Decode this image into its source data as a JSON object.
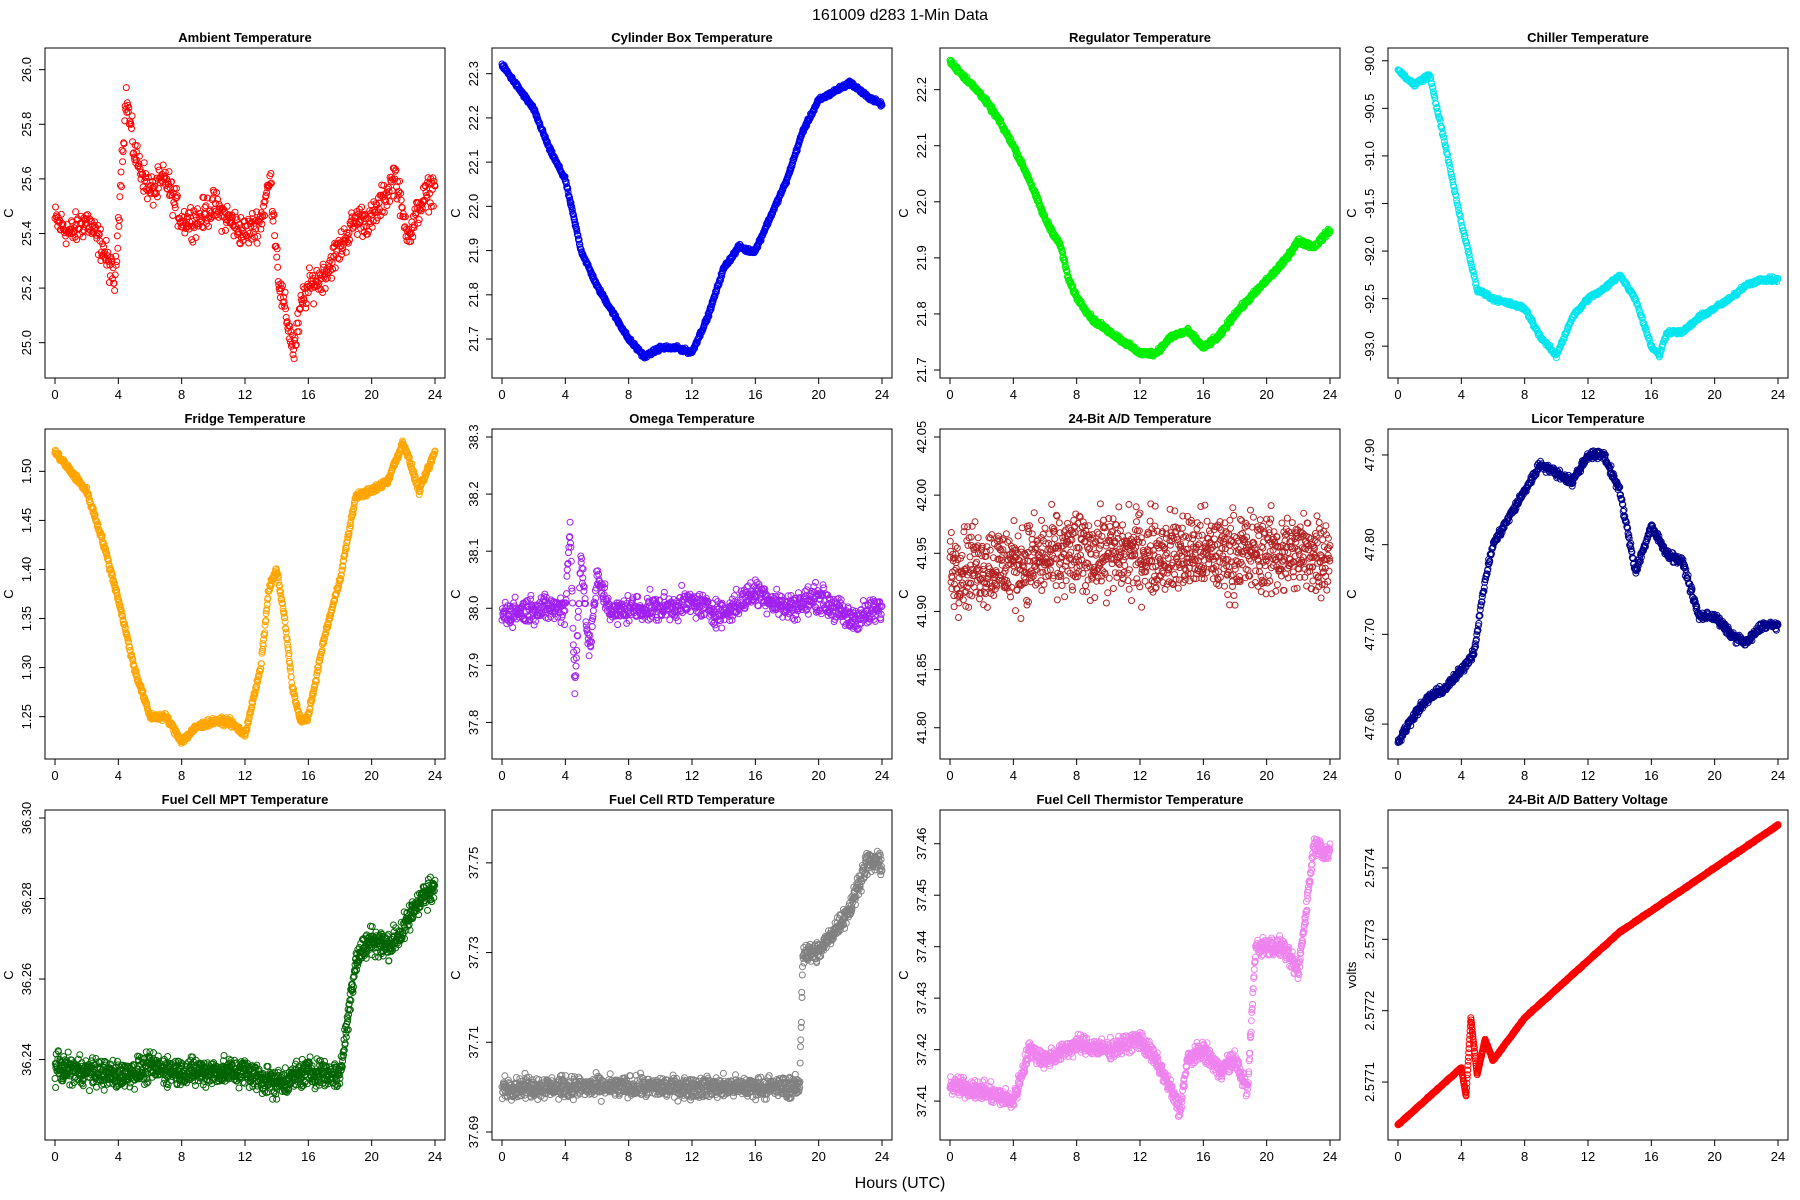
{
  "figure": {
    "title": "161009    d283    1-Min Data",
    "xlabel": "Hours (UTC)"
  },
  "chart_data": [
    {
      "type": "scatter",
      "title": "Ambient Temperature",
      "ylabel": "C",
      "color": "#ff0000",
      "xlim": [
        0,
        24
      ],
      "ylim": [
        24.9,
        26.05
      ],
      "xticks": [
        0,
        4,
        8,
        12,
        16,
        20,
        24
      ],
      "yticks": [
        25.0,
        25.2,
        25.4,
        25.6,
        25.8,
        26.0
      ],
      "ytick_labels": [
        "25.0",
        "25.2",
        "25.4",
        "25.6",
        "25.8",
        "26.0"
      ],
      "x": [
        0,
        1,
        2,
        3,
        3.8,
        4.1,
        4.5,
        5,
        6,
        7,
        8,
        9,
        10,
        11,
        12,
        13,
        13.6,
        14.2,
        14.6,
        15.1,
        15.6,
        16,
        17,
        18,
        19,
        20,
        21,
        21.5,
        22,
        22.5,
        23,
        24
      ],
      "y": [
        25.45,
        25.4,
        25.45,
        25.35,
        25.22,
        25.55,
        25.9,
        25.7,
        25.55,
        25.6,
        25.45,
        25.45,
        25.5,
        25.45,
        25.4,
        25.45,
        25.6,
        25.2,
        25.1,
        24.97,
        25.15,
        25.2,
        25.25,
        25.35,
        25.45,
        25.45,
        25.55,
        25.62,
        25.45,
        25.4,
        25.5,
        25.58
      ],
      "noise": 0.05,
      "density": 30
    },
    {
      "type": "scatter",
      "title": "Cylinder Box Temperature",
      "ylabel": "C",
      "color": "#0000ee",
      "xlim": [
        0,
        24
      ],
      "ylim": [
        21.63,
        22.34
      ],
      "xticks": [
        0,
        4,
        8,
        12,
        16,
        20,
        24
      ],
      "yticks": [
        21.7,
        21.8,
        21.9,
        22.0,
        22.1,
        22.2,
        22.3
      ],
      "ytick_labels": [
        "21.7",
        "21.8",
        "21.9",
        "22.0",
        "22.1",
        "22.2",
        "22.3"
      ],
      "x": [
        0,
        1,
        2,
        3,
        4,
        5,
        6,
        7,
        8,
        9,
        10,
        11,
        12,
        13,
        14,
        15,
        15.5,
        16,
        17,
        18,
        19,
        20,
        21,
        22,
        23,
        24
      ],
      "y": [
        22.32,
        22.27,
        22.22,
        22.13,
        22.06,
        21.9,
        21.82,
        21.76,
        21.7,
        21.66,
        21.68,
        21.68,
        21.67,
        21.75,
        21.86,
        21.91,
        21.9,
        21.9,
        21.98,
        22.06,
        22.17,
        22.24,
        22.26,
        22.28,
        22.25,
        22.23
      ],
      "noise": 0.004,
      "density": 45
    },
    {
      "type": "scatter",
      "title": "Regulator Temperature",
      "ylabel": "C",
      "color": "#00ee00",
      "xlim": [
        0,
        24
      ],
      "ylim": [
        21.7,
        22.26
      ],
      "xticks": [
        0,
        4,
        8,
        12,
        16,
        20,
        24
      ],
      "yticks": [
        21.7,
        21.8,
        21.9,
        22.0,
        22.1,
        22.2
      ],
      "ytick_labels": [
        "21.7",
        "21.8",
        "21.9",
        "22.0",
        "22.1",
        "22.2"
      ],
      "x": [
        0,
        1,
        2,
        3,
        4,
        5,
        6,
        7,
        7.5,
        8,
        9,
        10,
        11,
        12,
        13,
        14,
        15,
        16,
        17,
        18,
        19,
        20,
        21,
        22,
        23,
        24
      ],
      "y": [
        22.25,
        22.22,
        22.19,
        22.15,
        22.1,
        22.04,
        21.97,
        21.92,
        21.86,
        21.83,
        21.79,
        21.77,
        21.75,
        21.73,
        21.73,
        21.76,
        21.77,
        21.74,
        21.76,
        21.8,
        21.83,
        21.86,
        21.89,
        21.93,
        21.92,
        21.95
      ],
      "noise": 0.004,
      "density": 45
    },
    {
      "type": "scatter",
      "title": "Chiller Temperature",
      "ylabel": "C",
      "color": "#00e5ee",
      "xlim": [
        0,
        24
      ],
      "ylim": [
        -93.25,
        -89.95
      ],
      "xticks": [
        0,
        4,
        8,
        12,
        16,
        20,
        24
      ],
      "yticks": [
        -90.0,
        -90.5,
        -91.0,
        -91.5,
        -92.0,
        -92.5,
        -93.0
      ],
      "ytick_labels": [
        "-90.0",
        "-90.5",
        "-91.0",
        "-91.5",
        "-92.0",
        "-92.5",
        "-93.0"
      ],
      "x": [
        0,
        1,
        2,
        3,
        4,
        5,
        6,
        7,
        8,
        9,
        10,
        11,
        12,
        13,
        14,
        15,
        16,
        16.5,
        17,
        18,
        19,
        20,
        21,
        22,
        23,
        24
      ],
      "y": [
        -90.1,
        -90.25,
        -90.15,
        -90.9,
        -91.7,
        -92.4,
        -92.5,
        -92.55,
        -92.6,
        -92.9,
        -93.1,
        -92.7,
        -92.5,
        -92.4,
        -92.25,
        -92.5,
        -93.0,
        -93.1,
        -92.85,
        -92.85,
        -92.7,
        -92.6,
        -92.5,
        -92.35,
        -92.3,
        -92.3
      ],
      "noise": 0.02,
      "density": 30
    },
    {
      "type": "scatter",
      "title": "Fridge Temperature",
      "ylabel": "C",
      "color": "#ffa500",
      "xlim": [
        0,
        24
      ],
      "ylim": [
        1.215,
        1.535
      ],
      "xticks": [
        0,
        4,
        8,
        12,
        16,
        20,
        24
      ],
      "yticks": [
        1.25,
        1.3,
        1.35,
        1.4,
        1.45,
        1.5
      ],
      "ytick_labels": [
        "1.25",
        "1.30",
        "1.35",
        "1.40",
        "1.45",
        "1.50"
      ],
      "x": [
        0,
        1,
        2,
        3,
        4,
        5,
        6,
        7,
        8,
        9,
        10,
        11,
        12,
        13,
        13.5,
        14,
        14.5,
        15,
        15.5,
        16,
        17,
        18,
        19,
        20,
        21,
        22,
        23,
        24
      ],
      "y": [
        1.52,
        1.5,
        1.48,
        1.43,
        1.37,
        1.3,
        1.25,
        1.25,
        1.225,
        1.24,
        1.245,
        1.245,
        1.232,
        1.3,
        1.38,
        1.4,
        1.35,
        1.28,
        1.245,
        1.25,
        1.33,
        1.39,
        1.475,
        1.48,
        1.49,
        1.53,
        1.48,
        1.52
      ],
      "noise": 0.003,
      "density": 45
    },
    {
      "type": "scatter",
      "title": "Omega Temperature",
      "ylabel": "C",
      "color": "#a020f0",
      "xlim": [
        0,
        24
      ],
      "ylim": [
        37.75,
        38.3
      ],
      "xticks": [
        0,
        4,
        8,
        12,
        16,
        20,
        24
      ],
      "yticks": [
        37.8,
        37.9,
        38.0,
        38.1,
        38.2,
        38.3
      ],
      "ytick_labels": [
        "37.8",
        "37.9",
        "38.0",
        "38.1",
        "38.2",
        "38.3"
      ],
      "x": [
        0,
        2,
        4,
        4.3,
        4.6,
        5,
        5.5,
        6,
        7,
        8,
        10,
        12,
        14,
        16,
        18,
        20,
        22,
        24
      ],
      "y": [
        37.99,
        38.0,
        38.0,
        38.15,
        37.85,
        38.1,
        37.92,
        38.05,
        37.99,
        38.0,
        38.0,
        38.01,
        37.99,
        38.03,
        38.0,
        38.02,
        37.98,
        38.0
      ],
      "noise": 0.02,
      "density": 40
    },
    {
      "type": "scatter",
      "title": "24-Bit A/D Temperature",
      "ylabel": "C",
      "color": "#b22222",
      "xlim": [
        0,
        24
      ],
      "ylim": [
        41.78,
        42.05
      ],
      "xticks": [
        0,
        4,
        8,
        12,
        16,
        20,
        24
      ],
      "yticks": [
        41.8,
        41.85,
        41.9,
        41.95,
        42.0,
        42.05
      ],
      "ytick_labels": [
        "41.80",
        "41.85",
        "41.90",
        "41.95",
        "42.00",
        "42.05"
      ],
      "x": [
        0,
        4,
        8,
        12,
        16,
        20,
        24
      ],
      "y": [
        41.94,
        41.94,
        41.95,
        41.95,
        41.95,
        41.95,
        41.95
      ],
      "noise": 0.03,
      "density": 50
    },
    {
      "type": "scatter",
      "title": "Licor Temperature",
      "ylabel": "C",
      "color": "#00008b",
      "xlim": [
        0,
        24
      ],
      "ylim": [
        47.57,
        47.92
      ],
      "xticks": [
        0,
        4,
        8,
        12,
        16,
        20,
        24
      ],
      "yticks": [
        47.6,
        47.7,
        47.8,
        47.9
      ],
      "ytick_labels": [
        "47.60",
        "47.70",
        "47.80",
        "47.90"
      ],
      "x": [
        0,
        1,
        2,
        3,
        4,
        4.8,
        5.5,
        6,
        7,
        8,
        9,
        10,
        11,
        12,
        13,
        14,
        15,
        16,
        17,
        18,
        19,
        20,
        21,
        22,
        23,
        24
      ],
      "y": [
        47.58,
        47.61,
        47.63,
        47.64,
        47.66,
        47.68,
        47.76,
        47.8,
        47.83,
        47.86,
        47.89,
        47.88,
        47.87,
        47.9,
        47.9,
        47.86,
        47.77,
        47.82,
        47.79,
        47.78,
        47.72,
        47.72,
        47.7,
        47.69,
        47.71,
        47.71
      ],
      "noise": 0.004,
      "density": 40
    },
    {
      "type": "scatter",
      "title": "Fuel Cell MPT Temperature",
      "ylabel": "C",
      "color": "#006400",
      "xlim": [
        0,
        24
      ],
      "ylim": [
        36.222,
        36.3
      ],
      "xticks": [
        0,
        4,
        8,
        12,
        16,
        20,
        24
      ],
      "yticks": [
        36.24,
        36.26,
        36.28,
        36.3
      ],
      "ytick_labels": [
        "36.24",
        "36.26",
        "36.28",
        "36.30"
      ],
      "x": [
        0,
        2,
        4,
        6,
        8,
        10,
        12,
        14,
        16,
        18,
        19,
        20,
        21,
        22,
        23,
        24
      ],
      "y": [
        36.238,
        36.237,
        36.236,
        36.238,
        36.237,
        36.237,
        36.237,
        36.234,
        36.237,
        36.236,
        36.265,
        36.27,
        36.268,
        36.272,
        36.28,
        36.282
      ],
      "noise": 0.003,
      "density": 55
    },
    {
      "type": "scatter",
      "title": "Fuel Cell RTD Temperature",
      "ylabel": "C",
      "color": "#808080",
      "xlim": [
        0,
        24
      ],
      "ylim": [
        37.69,
        37.76
      ],
      "xticks": [
        0,
        4,
        8,
        12,
        16,
        20,
        24
      ],
      "yticks": [
        37.69,
        37.71,
        37.73,
        37.75
      ],
      "ytick_labels": [
        "37.69",
        "37.71",
        "37.73",
        "37.75"
      ],
      "x": [
        0,
        4,
        8,
        12,
        16,
        18.8,
        19,
        20,
        22,
        23,
        24
      ],
      "y": [
        37.7,
        37.7,
        37.7,
        37.7,
        37.7,
        37.7,
        37.73,
        37.73,
        37.74,
        37.75,
        37.75
      ],
      "noise": 0.002,
      "density": 55
    },
    {
      "type": "scatter",
      "title": "Fuel Cell Thermistor Temperature",
      "ylabel": "C",
      "color": "#ee82ee",
      "xlim": [
        0,
        24
      ],
      "ylim": [
        37.404,
        37.465
      ],
      "xticks": [
        0,
        4,
        8,
        12,
        16,
        20,
        24
      ],
      "yticks": [
        37.41,
        37.42,
        37.43,
        37.44,
        37.45,
        37.46
      ],
      "ytick_labels": [
        "37.41",
        "37.42",
        "37.43",
        "37.44",
        "37.45",
        "37.46"
      ],
      "x": [
        0,
        2,
        4,
        5,
        6,
        8,
        10,
        12,
        13,
        14,
        14.5,
        15,
        16,
        17,
        18,
        18.8,
        19.3,
        20,
        21,
        22,
        23,
        24
      ],
      "y": [
        37.413,
        37.412,
        37.41,
        37.42,
        37.418,
        37.421,
        37.42,
        37.422,
        37.418,
        37.412,
        37.408,
        37.418,
        37.42,
        37.416,
        37.418,
        37.412,
        37.44,
        37.44,
        37.44,
        37.435,
        37.46,
        37.458
      ],
      "noise": 0.0015,
      "density": 55
    },
    {
      "type": "line",
      "title": "24-Bit A/D Battery Voltage",
      "ylabel": "volts",
      "color": "#ff0000",
      "xlim": [
        0,
        24
      ],
      "ylim": [
        2.57703,
        2.57747
      ],
      "xticks": [
        0,
        4,
        8,
        12,
        16,
        20,
        24
      ],
      "yticks": [
        2.5771,
        2.5772,
        2.5773,
        2.5774
      ],
      "ytick_labels": [
        "2.5771",
        "2.5772",
        "2.5773",
        "2.5774"
      ],
      "x": [
        0,
        2,
        4,
        4.3,
        4.6,
        5.0,
        5.5,
        6,
        8,
        10,
        12,
        14,
        16,
        18,
        20,
        22,
        24
      ],
      "y": [
        2.57704,
        2.57708,
        2.57712,
        2.57708,
        2.57719,
        2.57711,
        2.57716,
        2.57713,
        2.57719,
        2.57723,
        2.57727,
        2.57731,
        2.57734,
        2.57737,
        2.5774,
        2.57743,
        2.57746
      ],
      "noise": 8e-07,
      "density": 60
    }
  ]
}
